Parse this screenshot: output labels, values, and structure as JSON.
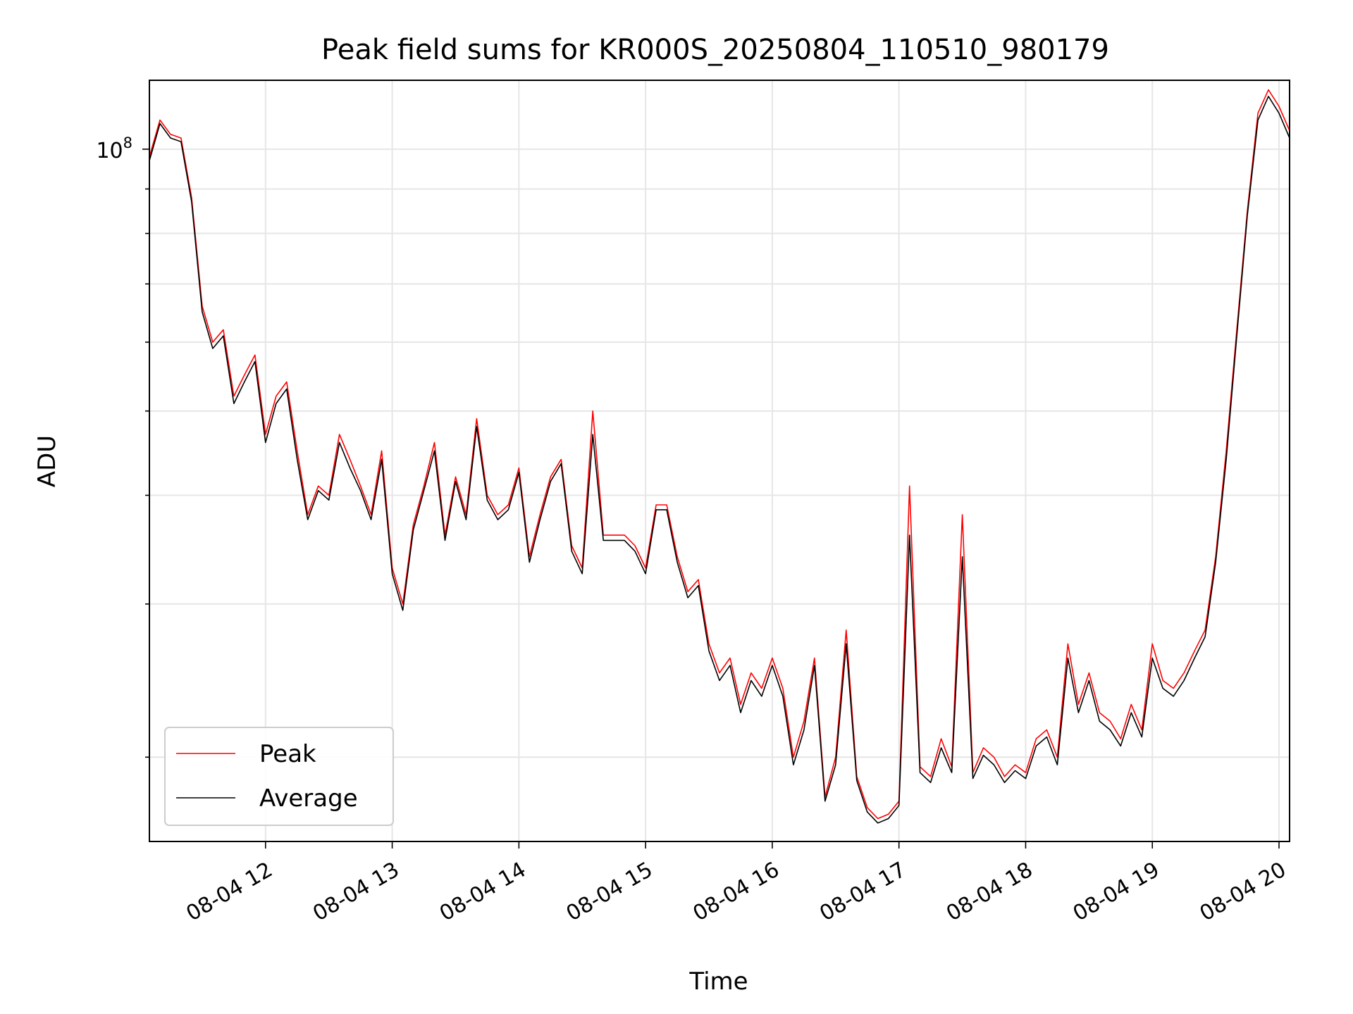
{
  "chart_data": {
    "type": "line",
    "title": "Peak field sums for KR000S_20250804_110510_980179",
    "xlabel": "Time",
    "ylabel": "ADU",
    "y_scale": "log",
    "xlim": [
      "08-04 11:05",
      "08-04 20:05"
    ],
    "ylim": [
      16000000,
      120000000
    ],
    "x_ticks": [
      "08-04 12",
      "08-04 13",
      "08-04 14",
      "08-04 15",
      "08-04 16",
      "08-04 17",
      "08-04 18",
      "08-04 19",
      "08-04 20"
    ],
    "y_ticks": [
      {
        "value": 100000000,
        "base": "10",
        "exp": "8"
      }
    ],
    "grid": true,
    "legend_position": "lower-left",
    "x": [
      "08-04 11:05",
      "08-04 11:10",
      "08-04 11:15",
      "08-04 11:20",
      "08-04 11:25",
      "08-04 11:30",
      "08-04 11:35",
      "08-04 11:40",
      "08-04 11:45",
      "08-04 11:50",
      "08-04 11:55",
      "08-04 12:00",
      "08-04 12:05",
      "08-04 12:10",
      "08-04 12:15",
      "08-04 12:20",
      "08-04 12:25",
      "08-04 12:30",
      "08-04 12:35",
      "08-04 12:40",
      "08-04 12:45",
      "08-04 12:50",
      "08-04 12:55",
      "08-04 13:00",
      "08-04 13:05",
      "08-04 13:10",
      "08-04 13:15",
      "08-04 13:20",
      "08-04 13:25",
      "08-04 13:30",
      "08-04 13:35",
      "08-04 13:40",
      "08-04 13:45",
      "08-04 13:50",
      "08-04 13:55",
      "08-04 14:00",
      "08-04 14:05",
      "08-04 14:10",
      "08-04 14:15",
      "08-04 14:20",
      "08-04 14:25",
      "08-04 14:30",
      "08-04 14:35",
      "08-04 14:40",
      "08-04 14:45",
      "08-04 14:50",
      "08-04 14:55",
      "08-04 15:00",
      "08-04 15:05",
      "08-04 15:10",
      "08-04 15:15",
      "08-04 15:20",
      "08-04 15:25",
      "08-04 15:30",
      "08-04 15:35",
      "08-04 15:40",
      "08-04 15:45",
      "08-04 15:50",
      "08-04 15:55",
      "08-04 16:00",
      "08-04 16:05",
      "08-04 16:10",
      "08-04 16:15",
      "08-04 16:20",
      "08-04 16:25",
      "08-04 16:30",
      "08-04 16:35",
      "08-04 16:40",
      "08-04 16:45",
      "08-04 16:50",
      "08-04 16:55",
      "08-04 17:00",
      "08-04 17:05",
      "08-04 17:10",
      "08-04 17:15",
      "08-04 17:20",
      "08-04 17:25",
      "08-04 17:30",
      "08-04 17:35",
      "08-04 17:40",
      "08-04 17:45",
      "08-04 17:50",
      "08-04 17:55",
      "08-04 18:00",
      "08-04 18:05",
      "08-04 18:10",
      "08-04 18:15",
      "08-04 18:20",
      "08-04 18:25",
      "08-04 18:30",
      "08-04 18:35",
      "08-04 18:40",
      "08-04 18:45",
      "08-04 18:50",
      "08-04 18:55",
      "08-04 19:00",
      "08-04 19:05",
      "08-04 19:10",
      "08-04 19:15",
      "08-04 19:20",
      "08-04 19:25",
      "08-04 19:30",
      "08-04 19:35",
      "08-04 19:40",
      "08-04 19:45",
      "08-04 19:50",
      "08-04 19:55",
      "08-04 20:00",
      "08-04 20:05"
    ],
    "series": [
      {
        "name": "Peak",
        "color": "#ff0000",
        "values": [
          98000000,
          108000000,
          104000000,
          103000000,
          88000000,
          66000000,
          60000000,
          62000000,
          52000000,
          55000000,
          58000000,
          47000000,
          52000000,
          54000000,
          45000000,
          38000000,
          41000000,
          40000000,
          47000000,
          44000000,
          41000000,
          38000000,
          45000000,
          33000000,
          30000000,
          37000000,
          41000000,
          46000000,
          36000000,
          42000000,
          38000000,
          49000000,
          40000000,
          38000000,
          39000000,
          43000000,
          34000000,
          38000000,
          42000000,
          44000000,
          35000000,
          33000000,
          50000000,
          36000000,
          36000000,
          36000000,
          35000000,
          33000000,
          39000000,
          39000000,
          34000000,
          31000000,
          32000000,
          27000000,
          25000000,
          26000000,
          23000000,
          25000000,
          24000000,
          26000000,
          24000000,
          20000000,
          22000000,
          26000000,
          18000000,
          20000000,
          28000000,
          19000000,
          17500000,
          17000000,
          17200000,
          17800000,
          41000000,
          19500000,
          19000000,
          21000000,
          19500000,
          38000000,
          19200000,
          20500000,
          20000000,
          19000000,
          19600000,
          19200000,
          21000000,
          21500000,
          20000000,
          27000000,
          23000000,
          25000000,
          22500000,
          22000000,
          21000000,
          23000000,
          21500000,
          27000000,
          24500000,
          24000000,
          25000000,
          26500000,
          28000000,
          34000000,
          45000000,
          62000000,
          85000000,
          110000000,
          117000000,
          112000000,
          105000000
        ]
      },
      {
        "name": "Average",
        "color": "#000000",
        "values": [
          97000000,
          107000000,
          103000000,
          102000000,
          87000000,
          65000000,
          59000000,
          61000000,
          51000000,
          54000000,
          57000000,
          46000000,
          51000000,
          53000000,
          44000000,
          37500000,
          40500000,
          39500000,
          46000000,
          43000000,
          40500000,
          37500000,
          44000000,
          32500000,
          29500000,
          36500000,
          40500000,
          45000000,
          35500000,
          41500000,
          37500000,
          48000000,
          39500000,
          37500000,
          38500000,
          42500000,
          33500000,
          37500000,
          41500000,
          43500000,
          34500000,
          32500000,
          47000000,
          35500000,
          35500000,
          35500000,
          34500000,
          32500000,
          38500000,
          38500000,
          33500000,
          30500000,
          31500000,
          26500000,
          24500000,
          25500000,
          22500000,
          24500000,
          23500000,
          25500000,
          23500000,
          19600000,
          21500000,
          25500000,
          17800000,
          19600000,
          27000000,
          18800000,
          17300000,
          16800000,
          17000000,
          17600000,
          36000000,
          19200000,
          18700000,
          20500000,
          19200000,
          34000000,
          18900000,
          20100000,
          19600000,
          18700000,
          19300000,
          18900000,
          20600000,
          21100000,
          19600000,
          26000000,
          22500000,
          24500000,
          22000000,
          21500000,
          20600000,
          22500000,
          21100000,
          26000000,
          24000000,
          23500000,
          24500000,
          26000000,
          27500000,
          33500000,
          44000000,
          61000000,
          84000000,
          108000000,
          115000000,
          110000000,
          103000000
        ]
      }
    ]
  }
}
